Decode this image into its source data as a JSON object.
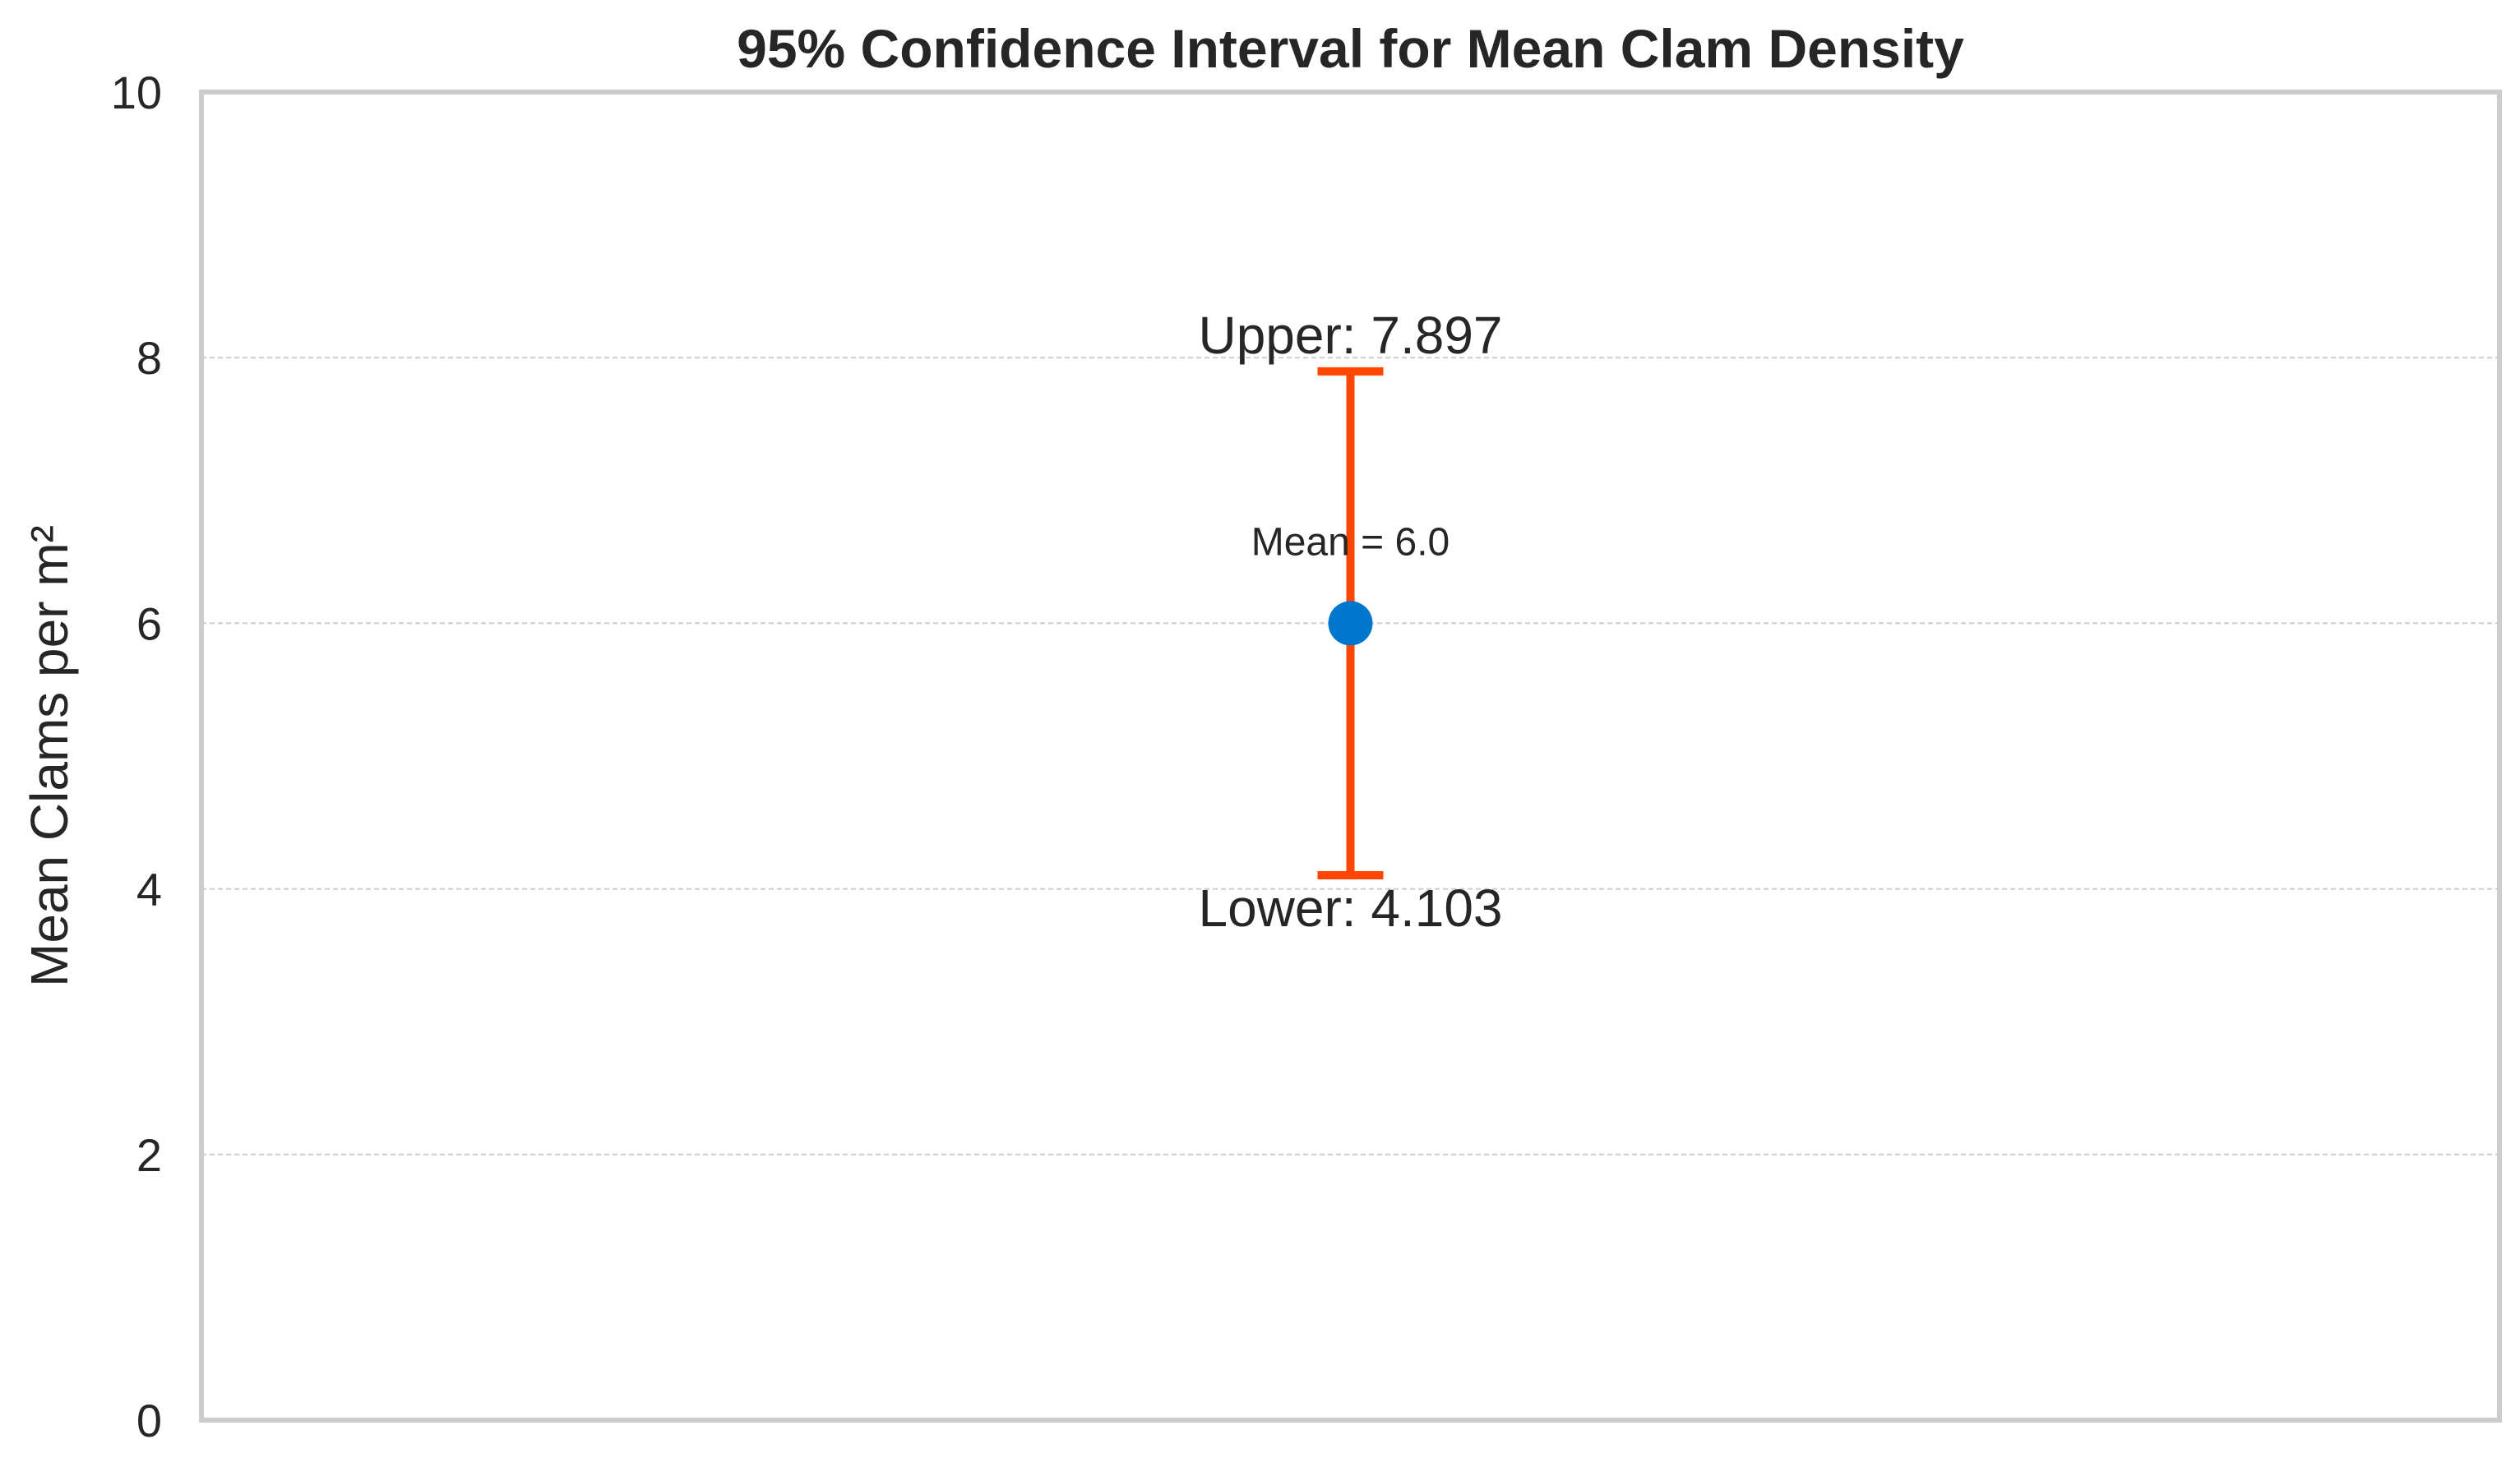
{
  "chart_data": {
    "type": "scatter",
    "title": "95% Confidence Interval for Mean Clam Density",
    "xlabel": "",
    "ylabel": "Mean Clams per m²",
    "ylim": [
      0,
      10
    ],
    "yticks": [
      0,
      2,
      4,
      6,
      8,
      10
    ],
    "ytick_labels": [
      "0",
      "2",
      "4",
      "6",
      "8",
      "10"
    ],
    "grid": "horizontal dashed",
    "mean": 6.0,
    "lower": 4.103,
    "upper": 7.897,
    "annotations": {
      "upper_label": "Upper: 7.897",
      "lower_label": "Lower: 4.103",
      "mean_label": "Mean = 6.0"
    },
    "colors": {
      "point": "#0077CC",
      "errorbar": "#FF4500",
      "grid": "#cccccc",
      "frame": "#cccccc",
      "text": "#262626"
    }
  }
}
